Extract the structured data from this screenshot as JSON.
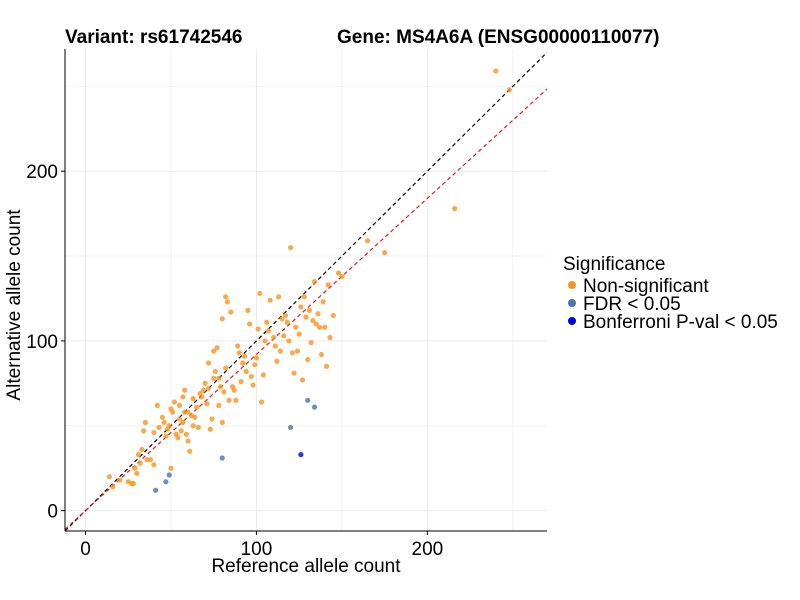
{
  "chart_data": {
    "type": "scatter",
    "title_left": "Variant: rs61742546",
    "title_right": "Gene: MS4A6A (ENSG00000110077)",
    "xlabel": "Reference allele count",
    "ylabel": "Alternative allele count",
    "xlim": [
      -12,
      270
    ],
    "ylim": [
      -12,
      272
    ],
    "xticks": [
      0,
      100,
      200
    ],
    "yticks": [
      0,
      100,
      200
    ],
    "grid": true,
    "legend": {
      "title": "Significance",
      "position": "right",
      "entries": [
        {
          "label": "Non-significant",
          "color": "#f7941d"
        },
        {
          "label": "FDR < 0.05",
          "color": "#4a74b2"
        },
        {
          "label": "Bonferroni P-val < 0.05",
          "color": "#0000ee"
        }
      ]
    },
    "reference_lines": [
      {
        "slope": 1.0,
        "intercept": 0,
        "color": "#000000",
        "dash": true
      },
      {
        "slope": 0.92,
        "intercept": 0,
        "color": "#e41a1c",
        "dash": true
      }
    ],
    "series": [
      {
        "name": "Non-significant",
        "color": "#f7941d",
        "points": [
          [
            14,
            20
          ],
          [
            16,
            14
          ],
          [
            20,
            18
          ],
          [
            25,
            17
          ],
          [
            27,
            16
          ],
          [
            28,
            16
          ],
          [
            29,
            25
          ],
          [
            30,
            22
          ],
          [
            31,
            33
          ],
          [
            32,
            28
          ],
          [
            33,
            36
          ],
          [
            34,
            47
          ],
          [
            35,
            52
          ],
          [
            36,
            30
          ],
          [
            38,
            30
          ],
          [
            40,
            27
          ],
          [
            40,
            46
          ],
          [
            42,
            62
          ],
          [
            43,
            49
          ],
          [
            45,
            55
          ],
          [
            46,
            52
          ],
          [
            47,
            44
          ],
          [
            48,
            48
          ],
          [
            49,
            50
          ],
          [
            50,
            25
          ],
          [
            50,
            60
          ],
          [
            51,
            58
          ],
          [
            52,
            64
          ],
          [
            53,
            45
          ],
          [
            54,
            43
          ],
          [
            55,
            54
          ],
          [
            55,
            62
          ],
          [
            56,
            47
          ],
          [
            57,
            52
          ],
          [
            57,
            67
          ],
          [
            58,
            71
          ],
          [
            58,
            58
          ],
          [
            59,
            45
          ],
          [
            60,
            41
          ],
          [
            60,
            58
          ],
          [
            61,
            35
          ],
          [
            62,
            56
          ],
          [
            63,
            50
          ],
          [
            63,
            66
          ],
          [
            64,
            55
          ],
          [
            65,
            61
          ],
          [
            66,
            49
          ],
          [
            67,
            69
          ],
          [
            68,
            67
          ],
          [
            69,
            71
          ],
          [
            70,
            75
          ],
          [
            71,
            63
          ],
          [
            72,
            72
          ],
          [
            72,
            87
          ],
          [
            73,
            48
          ],
          [
            74,
            54
          ],
          [
            75,
            94
          ],
          [
            75,
            78
          ],
          [
            76,
            82
          ],
          [
            77,
            96
          ],
          [
            78,
            78
          ],
          [
            78,
            62
          ],
          [
            79,
            73
          ],
          [
            80,
            52
          ],
          [
            80,
            113
          ],
          [
            81,
            70
          ],
          [
            82,
            126
          ],
          [
            82,
            84
          ],
          [
            83,
            123
          ],
          [
            84,
            65
          ],
          [
            85,
            117
          ],
          [
            86,
            73
          ],
          [
            87,
            71
          ],
          [
            88,
            65
          ],
          [
            89,
            97
          ],
          [
            90,
            93
          ],
          [
            91,
            76
          ],
          [
            92,
            87
          ],
          [
            93,
            91
          ],
          [
            94,
            82
          ],
          [
            95,
            118
          ],
          [
            96,
            110
          ],
          [
            97,
            79
          ],
          [
            98,
            74
          ],
          [
            99,
            86
          ],
          [
            100,
            90
          ],
          [
            101,
            107
          ],
          [
            102,
            128
          ],
          [
            103,
            64
          ],
          [
            104,
            80
          ],
          [
            105,
            100
          ],
          [
            106,
            111
          ],
          [
            107,
            106
          ],
          [
            108,
            124
          ],
          [
            110,
            102
          ],
          [
            111,
            97
          ],
          [
            112,
            88
          ],
          [
            113,
            126
          ],
          [
            114,
            94
          ],
          [
            115,
            113
          ],
          [
            116,
            103
          ],
          [
            117,
            115
          ],
          [
            118,
            111
          ],
          [
            119,
            100
          ],
          [
            120,
            155
          ],
          [
            121,
            93
          ],
          [
            122,
            81
          ],
          [
            123,
            108
          ],
          [
            124,
            94
          ],
          [
            125,
            104
          ],
          [
            126,
            120
          ],
          [
            127,
            77
          ],
          [
            128,
            126
          ],
          [
            129,
            114
          ],
          [
            130,
            89
          ],
          [
            131,
            118
          ],
          [
            132,
            99
          ],
          [
            133,
            112
          ],
          [
            134,
            135
          ],
          [
            135,
            110
          ],
          [
            136,
            116
          ],
          [
            137,
            108
          ],
          [
            138,
            92
          ],
          [
            139,
            123
          ],
          [
            140,
            108
          ],
          [
            141,
            85
          ],
          [
            142,
            133
          ],
          [
            143,
            102
          ],
          [
            145,
            115
          ],
          [
            148,
            140
          ],
          [
            150,
            138
          ],
          [
            165,
            159
          ],
          [
            175,
            152
          ],
          [
            216,
            178
          ],
          [
            240,
            259
          ],
          [
            248,
            248
          ]
        ]
      },
      {
        "name": "FDR < 0.05",
        "color": "#4a74b2",
        "points": [
          [
            41,
            12
          ],
          [
            47,
            17
          ],
          [
            49,
            21
          ],
          [
            80,
            31
          ],
          [
            120,
            49
          ],
          [
            130,
            65
          ],
          [
            134,
            61
          ]
        ]
      },
      {
        "name": "Bonferroni P-val < 0.05",
        "color": "#0000ee",
        "points": [
          [
            126,
            33
          ]
        ]
      }
    ]
  }
}
